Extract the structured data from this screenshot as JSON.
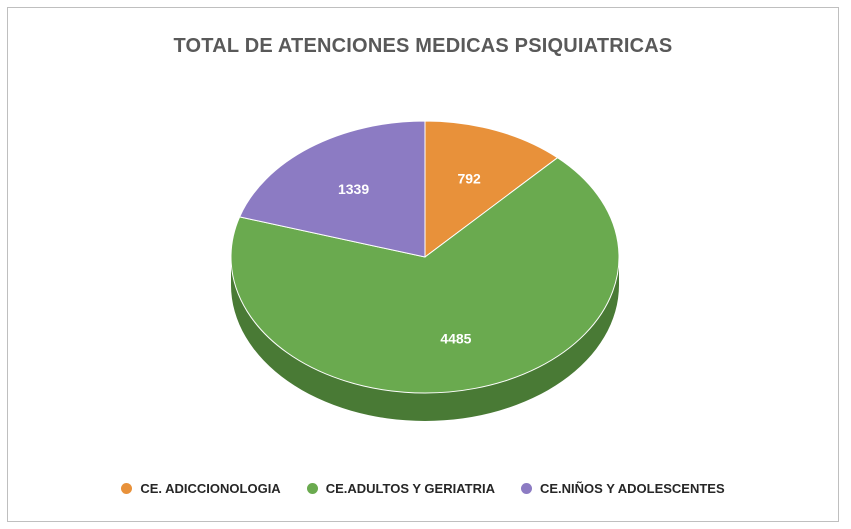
{
  "chart_data": {
    "type": "pie",
    "title": "TOTAL DE ATENCIONES MEDICAS PSIQUIATRICAS",
    "slices": [
      {
        "name": "CE. ADICCIONOLOGIA",
        "value": 792,
        "label": "792",
        "color": "#e8913a",
        "side_color": "#b56d25"
      },
      {
        "name": "CE.ADULTOS Y GERIATRIA",
        "value": 4485,
        "label": "4485",
        "color": "#6aaa4f",
        "side_color": "#497a35"
      },
      {
        "name": "CE.NIÑOS Y ADOLESCENTES",
        "value": 1339,
        "label": "1339",
        "color": "#8c7bc3",
        "side_color": "#63579a"
      }
    ],
    "legend_position": "bottom",
    "style": "3d"
  }
}
